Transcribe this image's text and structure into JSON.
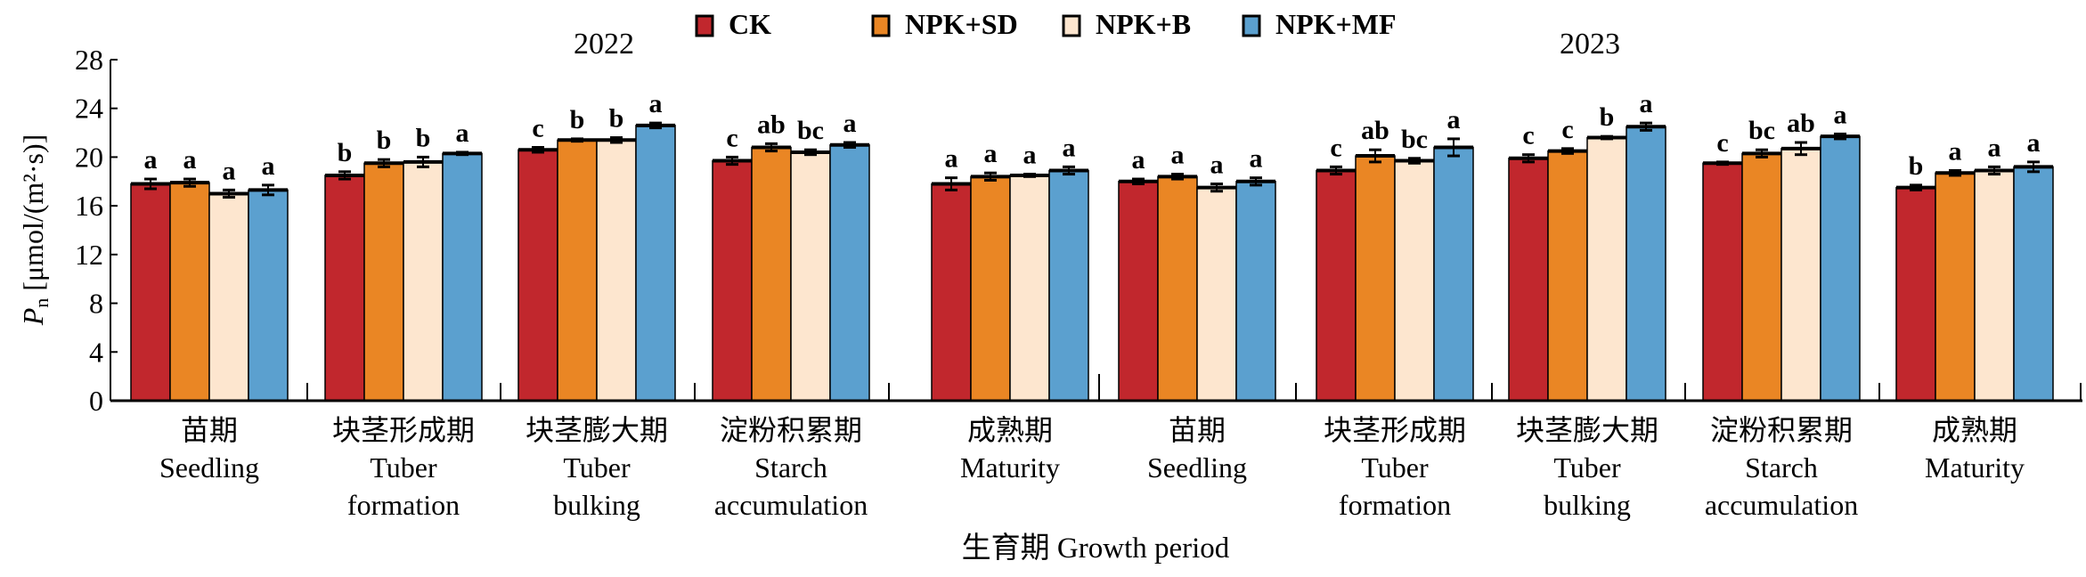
{
  "chart_data": {
    "type": "bar",
    "title": "",
    "ylabel_symbol": "P",
    "ylabel_sub": "n",
    "ylabel_unit": " [μmol/(m²·s)]",
    "xlabel": "生育期 Growth period",
    "ylim": [
      0,
      28
    ],
    "yticks": [
      "0",
      "4",
      "8",
      "12",
      "16",
      "20",
      "24",
      "28"
    ],
    "years": [
      "2022",
      "2023"
    ],
    "legend_position": "top-center",
    "colors": {
      "CK": "#c1272d",
      "NPK+SD": "#ea8624",
      "NPK+B": "#fde6cf",
      "NPK+MF": "#5ba0cf"
    },
    "series": [
      {
        "name": "CK",
        "values": [
          17.8,
          18.5,
          20.6,
          19.7,
          17.8,
          18.0,
          18.9,
          19.9,
          19.5,
          17.5
        ],
        "errors": [
          0.4,
          0.3,
          0.2,
          0.3,
          0.5,
          0.2,
          0.3,
          0.3,
          0.1,
          0.2
        ],
        "letters": [
          "a",
          "b",
          "c",
          "c",
          "a",
          "a",
          "c",
          "c",
          "c",
          "b"
        ]
      },
      {
        "name": "NPK+SD",
        "values": [
          17.9,
          19.5,
          21.4,
          20.8,
          18.4,
          18.4,
          20.1,
          20.5,
          20.3,
          18.7
        ],
        "errors": [
          0.3,
          0.3,
          0.1,
          0.3,
          0.3,
          0.2,
          0.5,
          0.2,
          0.3,
          0.2
        ],
        "letters": [
          "a",
          "b",
          "b",
          "ab",
          "a",
          "a",
          "ab",
          "c",
          "bc",
          "a"
        ]
      },
      {
        "name": "NPK+B",
        "values": [
          17.0,
          19.6,
          21.4,
          20.4,
          18.5,
          17.5,
          19.7,
          21.6,
          20.7,
          18.9
        ],
        "errors": [
          0.3,
          0.4,
          0.2,
          0.2,
          0.1,
          0.3,
          0.2,
          0.1,
          0.5,
          0.3
        ],
        "letters": [
          "a",
          "b",
          "b",
          "bc",
          "a",
          "a",
          "bc",
          "b",
          "ab",
          "a"
        ]
      },
      {
        "name": "NPK+MF",
        "values": [
          17.3,
          20.3,
          22.6,
          21.0,
          18.9,
          18.0,
          20.8,
          22.5,
          21.7,
          19.2
        ],
        "errors": [
          0.4,
          0.1,
          0.2,
          0.2,
          0.3,
          0.3,
          0.7,
          0.3,
          0.2,
          0.4
        ],
        "letters": [
          "a",
          "a",
          "a",
          "a",
          "a",
          "a",
          "a",
          "a",
          "a",
          "a"
        ]
      }
    ],
    "categories": [
      {
        "zh": "苗期",
        "en1": "Seedling",
        "en2": ""
      },
      {
        "zh": "块茎形成期",
        "en1": "Tuber",
        "en2": "formation"
      },
      {
        "zh": "块茎膨大期",
        "en1": "Tuber",
        "en2": "bulking"
      },
      {
        "zh": "淀粉积累期",
        "en1": "Starch",
        "en2": "accumulation"
      },
      {
        "zh": "成熟期",
        "en1": "Maturity",
        "en2": ""
      },
      {
        "zh": "苗期",
        "en1": "Seedling",
        "en2": ""
      },
      {
        "zh": "块茎形成期",
        "en1": "Tuber",
        "en2": "formation"
      },
      {
        "zh": "块茎膨大期",
        "en1": "Tuber",
        "en2": "bulking"
      },
      {
        "zh": "淀粉积累期",
        "en1": "Starch",
        "en2": "accumulation"
      },
      {
        "zh": "成熟期",
        "en1": "Maturity",
        "en2": ""
      }
    ]
  }
}
